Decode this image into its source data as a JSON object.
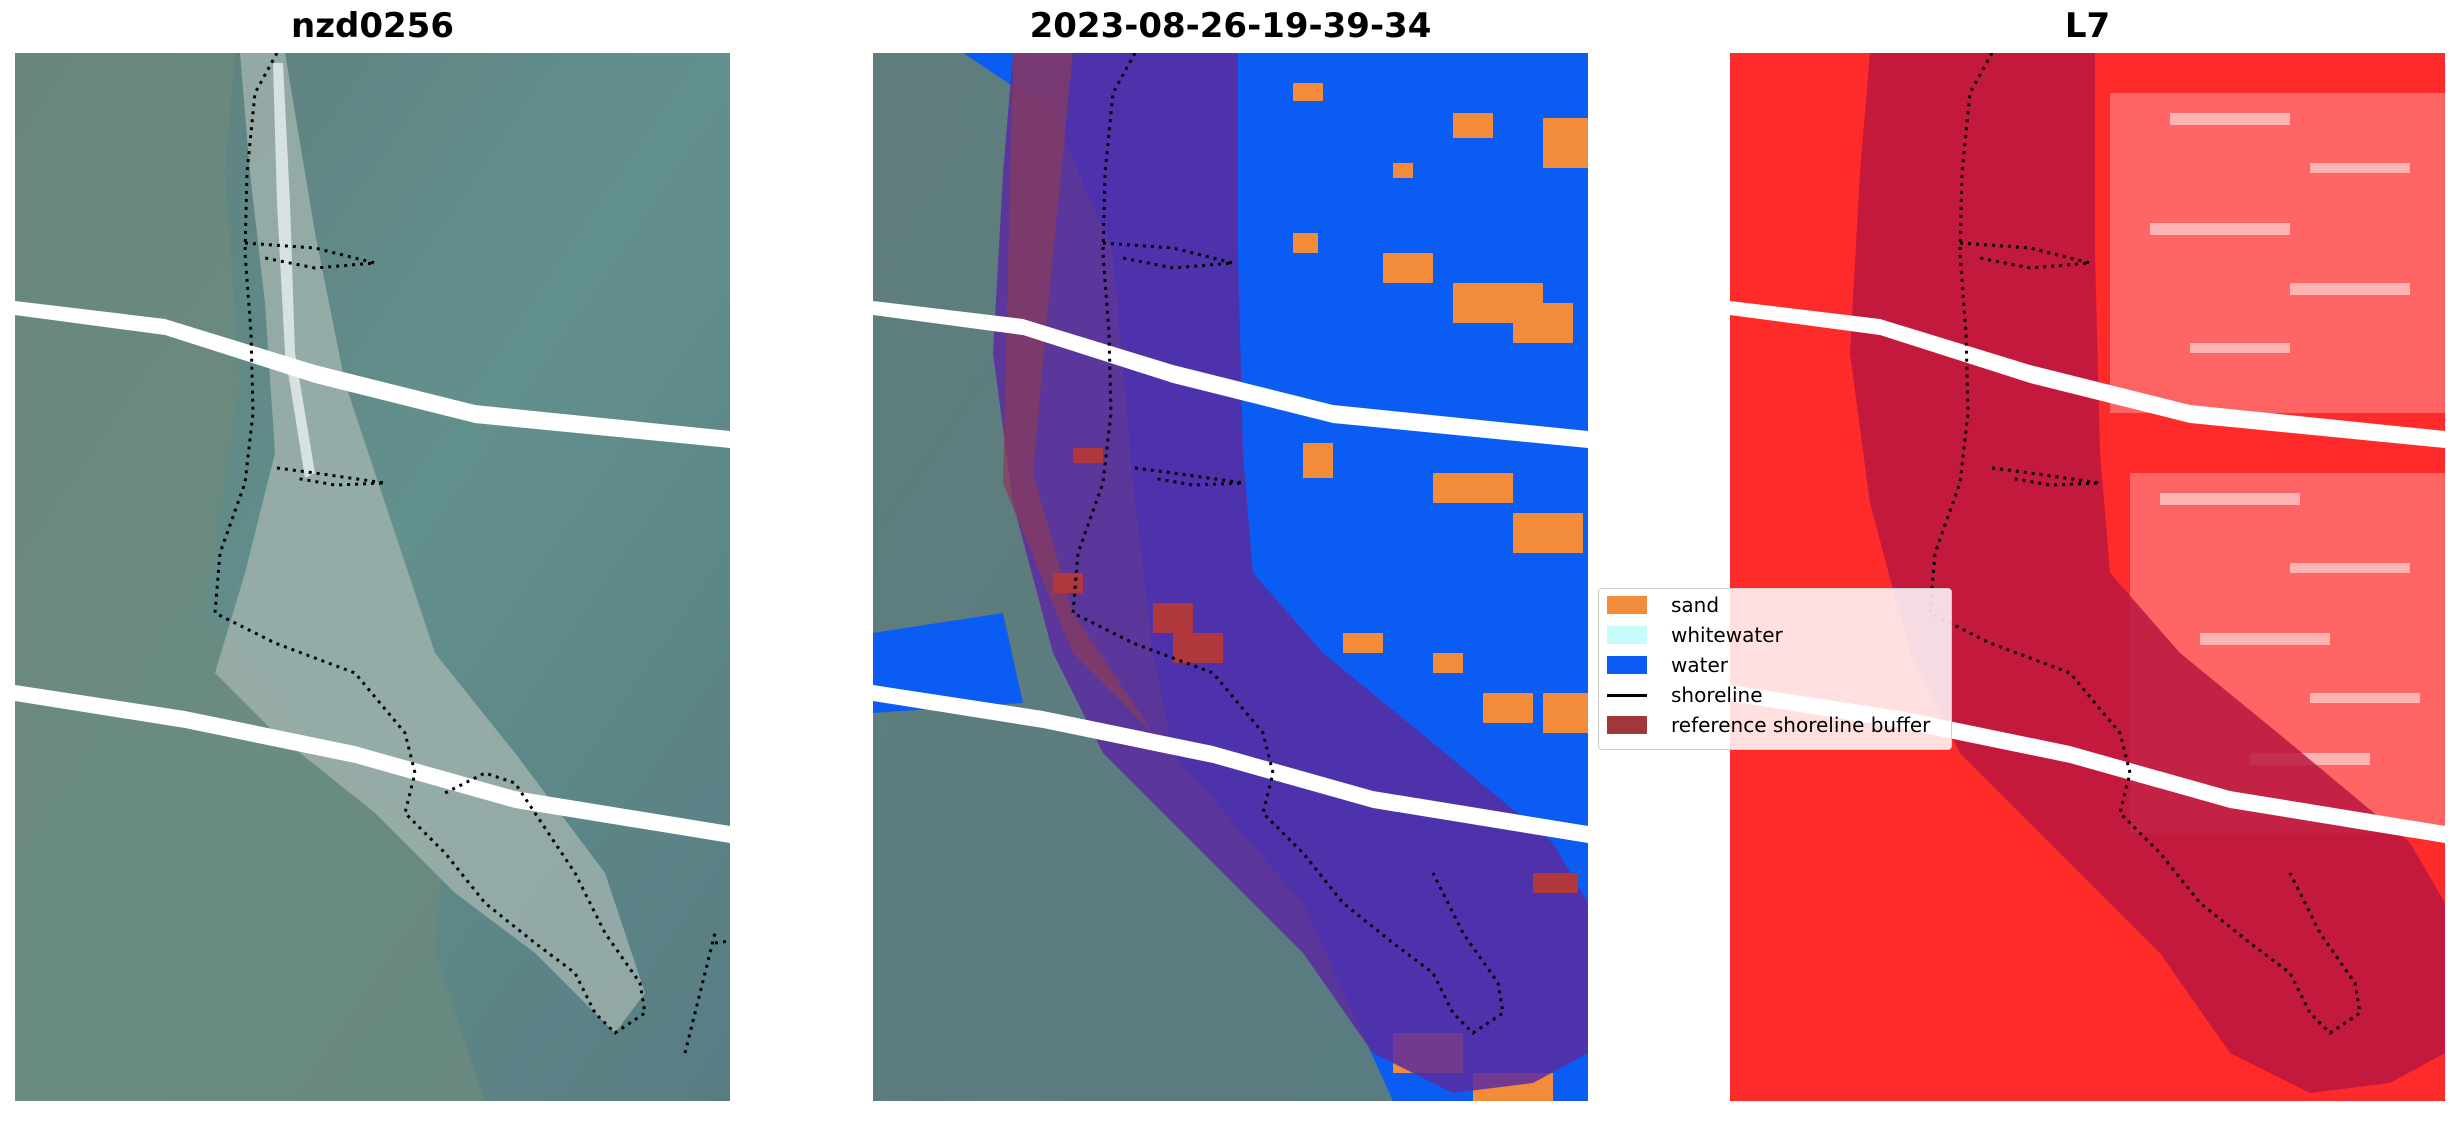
{
  "panels": [
    {
      "title": "nzd0256"
    },
    {
      "title": "2023-08-26-19-39-34"
    },
    {
      "title": "L7"
    }
  ],
  "legend": {
    "items": [
      {
        "label": "sand",
        "color": "#f28c3a",
        "kind": "patch"
      },
      {
        "label": "whitewater",
        "color": "#c8fbfb",
        "kind": "patch"
      },
      {
        "label": "water",
        "color": "#0b5cf2",
        "kind": "patch"
      },
      {
        "label": "shoreline",
        "color": "#000000",
        "kind": "line"
      },
      {
        "label": "reference shoreline buffer",
        "color": "#a0373a",
        "kind": "patch"
      }
    ]
  },
  "colors": {
    "rgb_background": "#5f8c8b",
    "rgb_land": "#6f8f80",
    "rgb_sand": "#a9b7b0",
    "water_class": "#0b5cf2",
    "sand_class": "#f28c3a",
    "buffer_overlay": "#5a2aa0",
    "index_background": "#ff2a2a",
    "index_buffer": "#b8163f"
  }
}
